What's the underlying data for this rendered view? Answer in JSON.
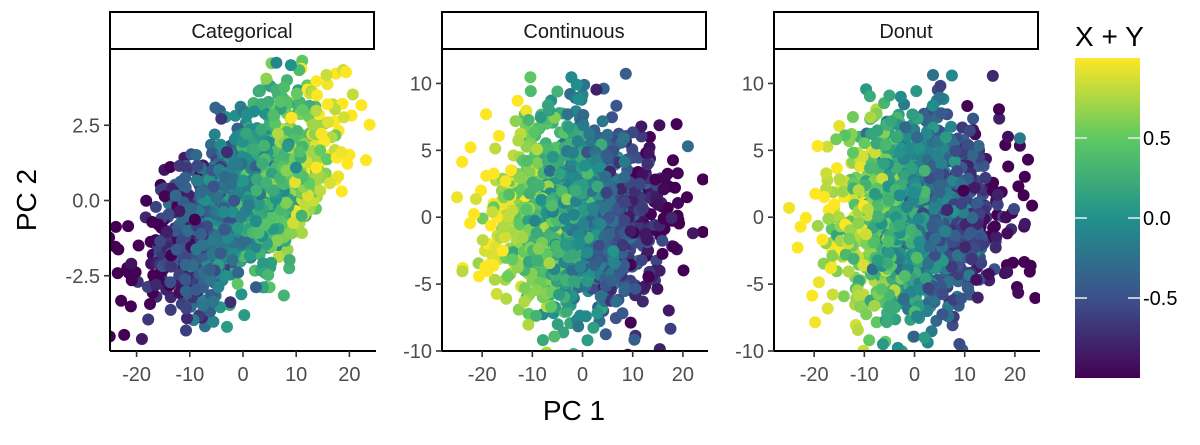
{
  "figure": {
    "xlabel": "PC 1",
    "ylabel": "PC 2"
  },
  "colorbar": {
    "title": "X + Y",
    "range": [
      -1,
      1
    ],
    "ticks": [
      {
        "value": 0.5,
        "label": "0.5"
      },
      {
        "value": 0.0,
        "label": "0.0"
      },
      {
        "value": -0.5,
        "label": "-0.5"
      }
    ],
    "colormap": "viridis",
    "colors": [
      "#440154",
      "#3b528b",
      "#21918c",
      "#5ec962",
      "#fde725"
    ]
  },
  "chart_data": [
    {
      "type": "scatter",
      "title": "Categorical",
      "xlim": [
        -25,
        25
      ],
      "ylim": [
        -5,
        5
      ],
      "xticks": [
        -20,
        -10,
        0,
        10,
        20
      ],
      "xtick_labels": [
        "-20",
        "-10",
        "0",
        "10",
        "20"
      ],
      "yticks": [
        2.5,
        0.0,
        -2.5
      ],
      "ytick_labels": [
        "2.5",
        "0.0",
        "-2.5"
      ],
      "distribution": {
        "center": [
          0,
          0
        ],
        "spread_x": 8,
        "spread_y": 1.6,
        "correlation": 0.6,
        "n_points": 1600,
        "color_gradient": "x"
      },
      "points": [
        {
          "x": -19,
          "y": -4.6,
          "c": -0.85
        },
        {
          "x": -21,
          "y": -2.1,
          "c": -0.9
        },
        {
          "x": 9,
          "y": 4.5,
          "c": 0.0
        },
        {
          "x": -3,
          "y": -4.2,
          "c": 0.1
        },
        {
          "x": 18.5,
          "y": 1.6,
          "c": 0.95
        },
        {
          "x": 16,
          "y": 2.6,
          "c": 0.9
        }
      ]
    },
    {
      "type": "scatter",
      "title": "Continuous",
      "xlim": [
        -28,
        25
      ],
      "ylim": [
        -10,
        12.5
      ],
      "xticks": [
        -20,
        -10,
        0,
        10,
        20
      ],
      "xtick_labels": [
        "-20",
        "-10",
        "0",
        "10",
        "20"
      ],
      "yticks": [
        10,
        5,
        0,
        -5,
        -10
      ],
      "ytick_labels": [
        "10",
        "5",
        "0",
        "-5",
        "-10"
      ],
      "distribution": {
        "center": [
          -1,
          0
        ],
        "spread_x": 8,
        "spread_y": 3.6,
        "correlation": 0.0,
        "n_points": 1600,
        "color_gradient": "-x"
      },
      "points": [
        {
          "x": -25,
          "y": 1.5,
          "c": 0.95
        },
        {
          "x": -5,
          "y": 9.4,
          "c": 0.3
        },
        {
          "x": 21,
          "y": 5.3,
          "c": -0.3
        },
        {
          "x": 1,
          "y": -9.2,
          "c": 0.1
        },
        {
          "x": 22,
          "y": -1.2,
          "c": -0.85
        }
      ]
    },
    {
      "type": "scatter",
      "title": "Donut",
      "xlim": [
        -28,
        25
      ],
      "ylim": [
        -10,
        12.5
      ],
      "xticks": [
        -20,
        -10,
        0,
        10,
        20
      ],
      "xtick_labels": [
        "-20",
        "-10",
        "0",
        "10",
        "20"
      ],
      "yticks": [
        10,
        5,
        0,
        -5,
        -10
      ],
      "ytick_labels": [
        "10",
        "5",
        "0",
        "-5",
        "-10"
      ],
      "distribution": {
        "center": [
          0,
          0
        ],
        "spread_x": 8,
        "spread_y": 3.6,
        "correlation": 0.0,
        "n_points": 1600,
        "color_gradient": "-x"
      },
      "points": [
        {
          "x": -25,
          "y": 0.7,
          "c": 0.95
        },
        {
          "x": -5,
          "y": 9.1,
          "c": 0.2
        },
        {
          "x": 21,
          "y": 5.9,
          "c": -0.2
        },
        {
          "x": 2,
          "y": -9.0,
          "c": 0.1
        },
        {
          "x": 22,
          "y": -0.5,
          "c": -0.85
        }
      ]
    }
  ]
}
